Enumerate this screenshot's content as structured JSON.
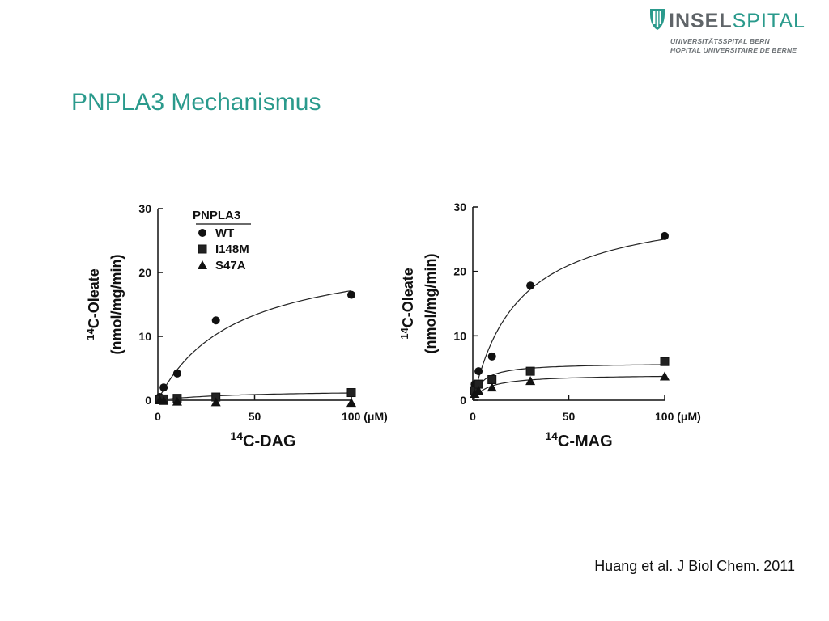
{
  "logo": {
    "name_bold": "INSEL",
    "name_light": "SPITAL",
    "line1": "UNIVERSITÄTSSPITAL BERN",
    "line2": "HOPITAL UNIVERSITAIRE DE BERNE"
  },
  "slide": {
    "title": "PNPLA3 Mechanismus",
    "citation": "Huang et al. J Biol Chem. 2011"
  },
  "colors": {
    "accent": "#2a9a8c",
    "ink": "#111111"
  },
  "chart_data": [
    {
      "type": "scatter",
      "xlabel_sup": "14",
      "xlabel_main": "C-DAG",
      "ylabel_sup": "14",
      "ylabel_line1": "C-Oleate",
      "ylabel_line2": "(nmol/mg/min)",
      "xlim": [
        0,
        100
      ],
      "ylim": [
        0,
        30
      ],
      "xticks": [
        0,
        50,
        100
      ],
      "xtick_labels": [
        "0",
        "50",
        "100 (μM)"
      ],
      "yticks": [
        0,
        10,
        20,
        30
      ],
      "ytick_labels": [
        "0",
        "10",
        "20",
        "30"
      ],
      "legend_title": "PNPLA3",
      "legend_position": "top",
      "series": [
        {
          "name": "WT",
          "marker": "circle",
          "x": [
            1,
            3,
            10,
            30,
            100
          ],
          "y": [
            0.5,
            2,
            4.2,
            12.5,
            16.5
          ],
          "fit": {
            "vmax": 24,
            "km": 40
          }
        },
        {
          "name": "I148M",
          "marker": "square",
          "x": [
            1,
            3,
            10,
            30,
            100
          ],
          "y": [
            0.1,
            0.2,
            0.3,
            0.5,
            1.2
          ],
          "fit": {
            "vmax": 1.6,
            "km": 40
          }
        },
        {
          "name": "S47A",
          "marker": "triangle",
          "x": [
            1,
            3,
            10,
            30,
            100
          ],
          "y": [
            0,
            -0.1,
            -0.2,
            -0.3,
            -0.4
          ],
          "fit": {
            "vmax": 0,
            "km": 40
          }
        }
      ]
    },
    {
      "type": "scatter",
      "xlabel_sup": "14",
      "xlabel_main": "C-MAG",
      "ylabel_sup": "14",
      "ylabel_line1": "C-Oleate",
      "ylabel_line2": "(nmol/mg/min)",
      "xlim": [
        0,
        100
      ],
      "ylim": [
        0,
        30
      ],
      "xticks": [
        0,
        50,
        100
      ],
      "xtick_labels": [
        "0",
        "50",
        "100 (μM)"
      ],
      "yticks": [
        0,
        10,
        20,
        30
      ],
      "ytick_labels": [
        "0",
        "10",
        "20",
        "30"
      ],
      "series": [
        {
          "name": "WT",
          "marker": "circle",
          "x": [
            1,
            3,
            10,
            30,
            100
          ],
          "y": [
            2.5,
            4.5,
            6.8,
            17.8,
            25.5
          ],
          "fit": {
            "vmax": 31,
            "km": 24
          }
        },
        {
          "name": "I148M",
          "marker": "square",
          "x": [
            1,
            3,
            10,
            30,
            100
          ],
          "y": [
            1.5,
            2.5,
            3.2,
            4.5,
            6
          ],
          "fit": {
            "vmax": 5.8,
            "km": 5
          }
        },
        {
          "name": "S47A",
          "marker": "triangle",
          "x": [
            1,
            3,
            10,
            30,
            100
          ],
          "y": [
            1,
            1.5,
            2,
            3,
            3.7
          ],
          "fit": {
            "vmax": 4,
            "km": 8
          }
        }
      ]
    }
  ]
}
